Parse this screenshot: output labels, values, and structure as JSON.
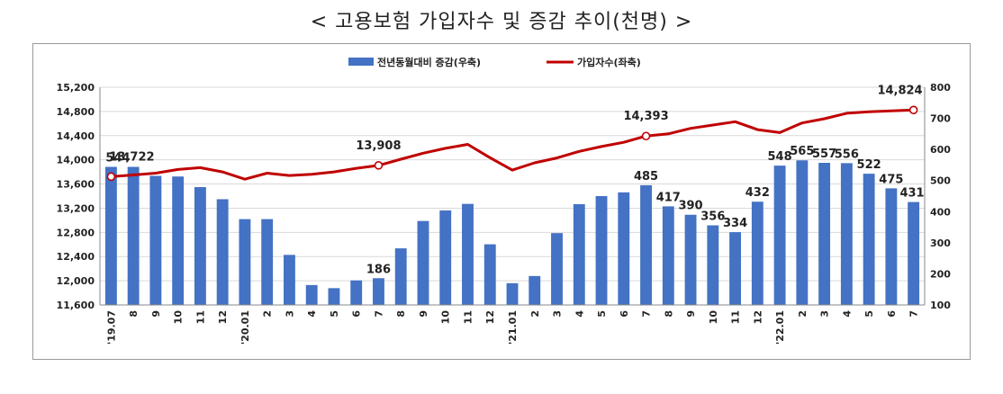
{
  "title": "< 고용보험 가입자수 및 증감 추이(천명) >",
  "chart_data": {
    "type": "bar+line",
    "categories": [
      "'19.07",
      "8",
      "9",
      "10",
      "11",
      "12",
      "'20.01",
      "2",
      "3",
      "4",
      "5",
      "6",
      "7",
      "8",
      "9",
      "10",
      "11",
      "12",
      "'21.01",
      "2",
      "3",
      "4",
      "5",
      "6",
      "7",
      "8",
      "9",
      "10",
      "11",
      "12",
      "'22.01",
      "2",
      "3",
      "4",
      "5",
      "6",
      "7"
    ],
    "series": [
      {
        "name": "전년동월대비 증감(우축)",
        "type": "bar",
        "axis": "right",
        "color": "#4472c4",
        "values": [
          544,
          544,
          515,
          513,
          479,
          440,
          376,
          376,
          261,
          164,
          154,
          179,
          186,
          282,
          370,
          404,
          425,
          295,
          170,
          193,
          331,
          424,
          450,
          462,
          485,
          417,
          390,
          356,
          334,
          432,
          548,
          565,
          557,
          556,
          522,
          475,
          431
        ]
      },
      {
        "name": "가입자수(좌축)",
        "type": "line",
        "axis": "left",
        "color": "#c00000",
        "values": [
          13722,
          13750,
          13780,
          13840,
          13870,
          13800,
          13680,
          13780,
          13740,
          13760,
          13800,
          13860,
          13908,
          14010,
          14110,
          14190,
          14255,
          14035,
          13830,
          13950,
          14030,
          14140,
          14220,
          14290,
          14393,
          14430,
          14520,
          14575,
          14630,
          14500,
          14450,
          14610,
          14680,
          14770,
          14795,
          14810,
          14824
        ]
      }
    ],
    "y_left": {
      "min": 11600,
      "max": 15200,
      "ticks": [
        "11,600",
        "12,000",
        "12,400",
        "12,800",
        "13,200",
        "13,600",
        "14,000",
        "14,400",
        "14,800",
        "15,200"
      ]
    },
    "y_right": {
      "min": 100,
      "max": 800,
      "ticks": [
        "100",
        "200",
        "300",
        "400",
        "500",
        "600",
        "700",
        "800"
      ]
    },
    "bar_labels": [
      {
        "index": 0,
        "text": "544"
      },
      {
        "index": 12,
        "text": "186"
      },
      {
        "index": 24,
        "text": "485"
      },
      {
        "index": 25,
        "text": "417"
      },
      {
        "index": 26,
        "text": "390"
      },
      {
        "index": 27,
        "text": "356"
      },
      {
        "index": 28,
        "text": "334"
      },
      {
        "index": 29,
        "text": "432"
      },
      {
        "index": 30,
        "text": "548"
      },
      {
        "index": 31,
        "text": "565"
      },
      {
        "index": 32,
        "text": "557"
      },
      {
        "index": 33,
        "text": "556"
      },
      {
        "index": 34,
        "text": "522"
      },
      {
        "index": 35,
        "text": "475"
      },
      {
        "index": 36,
        "text": "431"
      }
    ],
    "line_labels": [
      {
        "index": 0,
        "text": "13,722"
      },
      {
        "index": 12,
        "text": "13,908"
      },
      {
        "index": 24,
        "text": "14,393"
      },
      {
        "index": 36,
        "text": "14,824"
      }
    ],
    "legend_position": "top-center"
  }
}
